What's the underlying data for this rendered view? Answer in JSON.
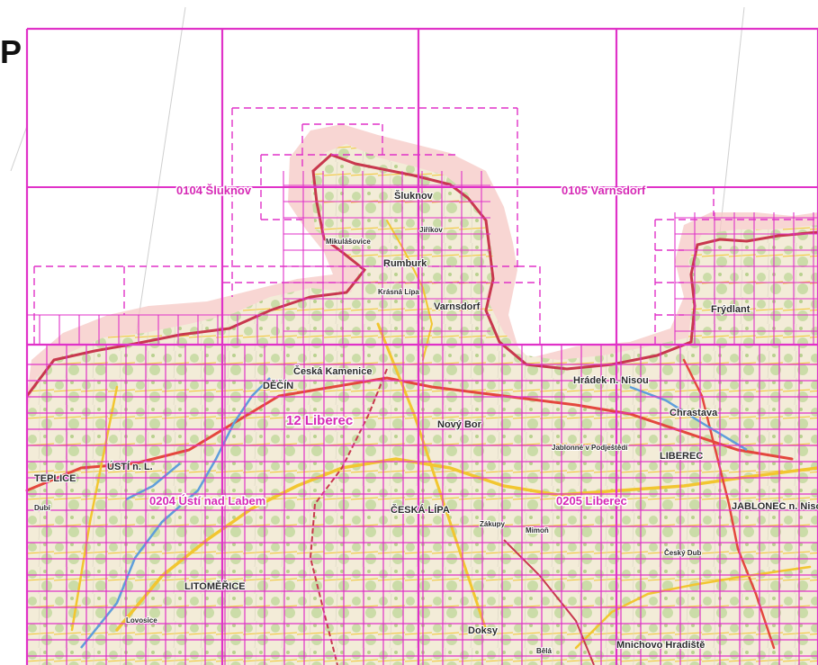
{
  "corner_glyph": "P",
  "colors": {
    "grid": "#e032c8",
    "border": "#c8384e",
    "buffer": "#f6c8c4",
    "terrain_green": "#cbdca8",
    "terrain_light": "#f3ecd8",
    "road_yellow": "#f2c630",
    "road_red": "#e4473d",
    "water": "#5e9edb"
  },
  "labels": {
    "sluknov_sheet": "0104 Šluknov",
    "varnsdorf_sheet": "0105 Varnsdorf",
    "region": "12 Liberec",
    "usti_sheet": "0204 Ústí nad Labem",
    "liberec_sheet": "0205 Liberec"
  },
  "towns": {
    "sluknov": "Šluknov",
    "rumburk": "Rumburk",
    "varnsdorf": "Varnsdorf",
    "mikulasovice": "Mikulášovice",
    "jirikov": "Jiříkov",
    "krasna_lipa": "Krásná Lípa",
    "ceska_kamenice": "Česká Kamenice",
    "decin": "DĚČÍN",
    "usti": "ÚSTÍ n. L.",
    "teplice": "TEPLICE",
    "litomerice": "LITOMĚŘICE",
    "lovosice": "Lovosice",
    "ceska_lipa": "ČESKÁ LÍPA",
    "novy_bor": "Nový Bor",
    "liberec": "LIBEREC",
    "jablonec": "JABLONEC n. Nisou",
    "chrastava": "Chrastava",
    "frydlant": "Frýdlant",
    "hradek": "Hrádek n. Nisou",
    "zakupy": "Zákupy",
    "doksy": "Doksy",
    "mimon": "Mimoň",
    "cesky_dub": "Český Dub",
    "jablonne": "Jablonné v Podještědí",
    "mnichovo": "Mnichovo Hradiště",
    "dubi": "Dubí",
    "bela": "Bělá"
  }
}
